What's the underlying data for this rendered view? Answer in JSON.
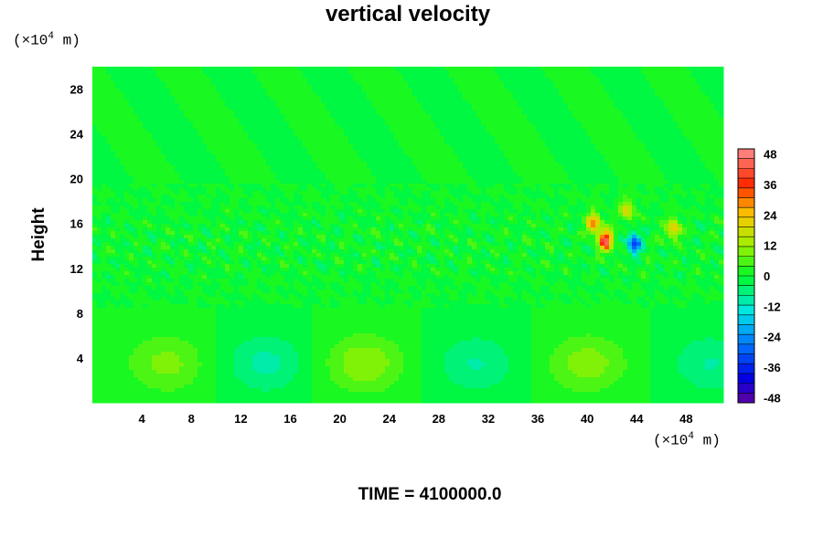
{
  "chart_data": {
    "type": "heatmap",
    "title": "vertical velocity",
    "ylabel": "Height",
    "xlabel": "",
    "x_unit": {
      "prefix": "(×10",
      "exp": "4",
      "suffix": " m)"
    },
    "y_unit": {
      "prefix": "(×10",
      "exp": "4",
      "suffix": " m)"
    },
    "footer": "TIME = 4100000.0",
    "xlim": [
      0,
      51
    ],
    "ylim": [
      0,
      30
    ],
    "x_ticks": [
      4,
      8,
      12,
      16,
      20,
      24,
      28,
      32,
      36,
      40,
      44,
      48
    ],
    "y_ticks": [
      4,
      8,
      12,
      16,
      20,
      24,
      28
    ],
    "colorbar": {
      "range": [
        -50,
        50
      ],
      "ticks": [
        48,
        36,
        24,
        12,
        0,
        -12,
        -24,
        -36,
        -48
      ],
      "levels": 26
    },
    "features": [
      {
        "kind": "warm_cell",
        "x": 6,
        "y": 3.5,
        "peak": 9
      },
      {
        "kind": "warm_cell",
        "x": 22,
        "y": 3.5,
        "peak": 11
      },
      {
        "kind": "warm_cell",
        "x": 40,
        "y": 3.5,
        "peak": 10
      },
      {
        "kind": "cool_cell",
        "x": 14,
        "y": 3.5,
        "peak": -9
      },
      {
        "kind": "cool_cell",
        "x": 31,
        "y": 3.5,
        "peak": -8
      },
      {
        "kind": "cool_cell",
        "x": 50,
        "y": 3.5,
        "peak": -8
      },
      {
        "kind": "updraft",
        "x": 41.5,
        "y": 14.5,
        "peak": 44
      },
      {
        "kind": "updraft",
        "x": 40.5,
        "y": 16,
        "peak": 30
      },
      {
        "kind": "downdraft",
        "x": 43.8,
        "y": 14.2,
        "peak": -34
      },
      {
        "kind": "updraft",
        "x": 47,
        "y": 15.5,
        "peak": 24
      },
      {
        "kind": "updraft",
        "x": 43.2,
        "y": 17.2,
        "peak": 20
      }
    ]
  }
}
